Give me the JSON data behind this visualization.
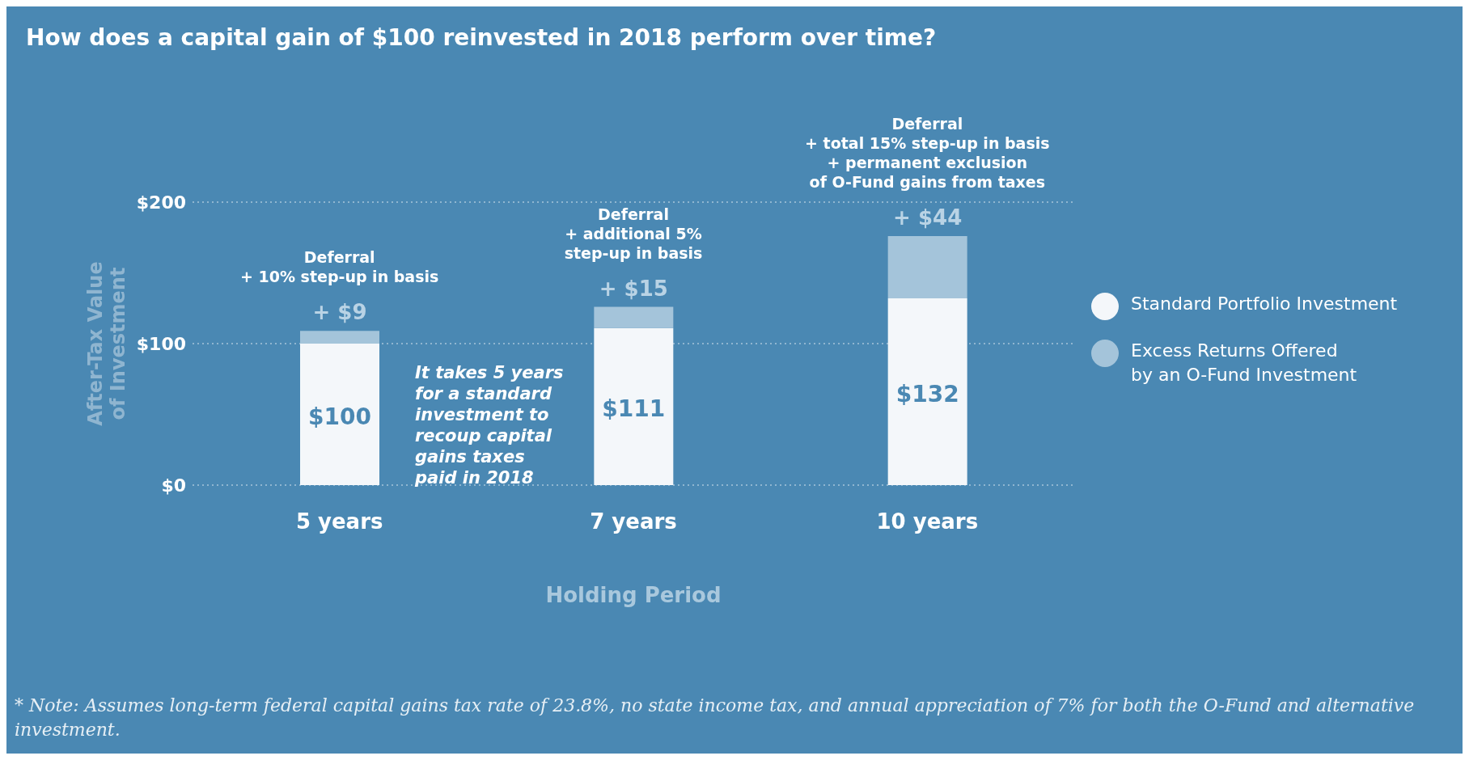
{
  "chart_data": {
    "type": "bar",
    "title": "How does a capital gain of $100 reinvested in 2018 perform over time?",
    "xlabel": "Holding Period",
    "ylabel": "After-Tax Value\nof Investment",
    "categories": [
      "5 years",
      "7 years",
      "10 years"
    ],
    "series": [
      {
        "name": "Standard Portfolio Investment",
        "color": "#f4f7fa",
        "values": [
          100,
          111,
          132
        ],
        "value_labels": [
          "$100",
          "$111",
          "$132"
        ]
      },
      {
        "name": "Excess Returns Offered\nby an O-Fund Investment",
        "color": "#a4c4da",
        "values": [
          9,
          15,
          44
        ],
        "value_labels": [
          "+ $9",
          "+ $15",
          "+ $44"
        ]
      }
    ],
    "stacked": true,
    "ylim": [
      0,
      200
    ],
    "yticks": [
      {
        "value": 0,
        "label": "$0"
      },
      {
        "value": 100,
        "label": "$100"
      },
      {
        "value": 200,
        "label": "$200"
      }
    ],
    "grid": "y",
    "legend": "right",
    "annotations": [
      {
        "text": "Deferral\n+ 10% step-up in basis",
        "x": "5 years",
        "y": 109
      },
      {
        "text": "Deferral\n+ additional 5%\nstep-up in basis",
        "x": "7 years",
        "y": 126
      },
      {
        "text": "Deferral\n+ total 15% step-up in basis\n+ permanent exclusion\nof O-Fund gains from taxes",
        "x": "10 years",
        "y": 176
      },
      "It takes 5 years\nfor a standard\ninvestment to\nrecoup capital\ngains taxes\npaid in 2018",
      "* Note: Assumes long-term federal capital gains tax rate of 23.8%, no state income tax, and annual appreciation of 7% for both the O-Fund and alternative investment."
    ]
  }
}
